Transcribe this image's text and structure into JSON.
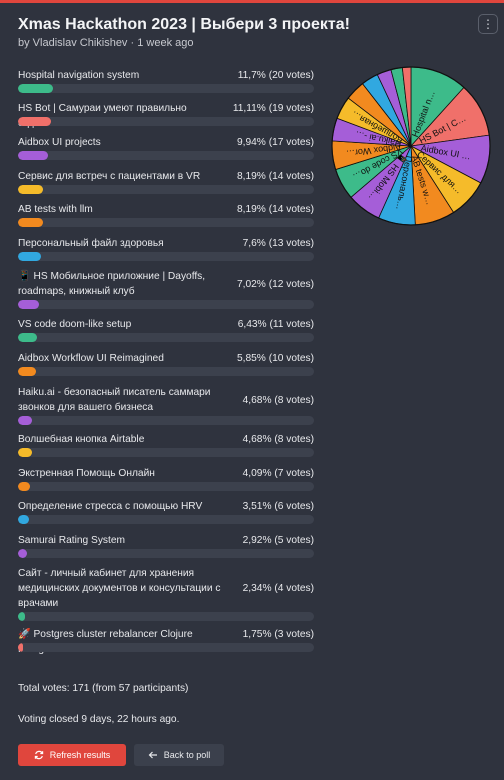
{
  "poll": {
    "title": "Xmas Hackathon 2023 | Выбери 3 проекта!",
    "byline": "by Vladislav Chikishev · 1 week ago",
    "more_icon": "more-dots-icon",
    "options": [
      {
        "label": "Hospital navigation system",
        "votes": "11,7% (20 votes)",
        "percent": 11.7,
        "color": "#3dbb8a"
      },
      {
        "label": "HS Bot | Самураи умеют правильно отдыхать!",
        "votes": "11,11% (19 votes)",
        "percent": 11.11,
        "color": "#f0706a"
      },
      {
        "label": "Aidbox UI projects",
        "votes": "9,94% (17 votes)",
        "percent": 9.94,
        "color": "#a55ed8"
      },
      {
        "label": "Сервис для встреч с пациентами в VR",
        "votes": "8,19% (14 votes)",
        "percent": 8.19,
        "color": "#f5bb2a"
      },
      {
        "label": "AB tests with llm",
        "votes": "8,19% (14 votes)",
        "percent": 8.19,
        "color": "#f28a1f"
      },
      {
        "label": "Персональный файл здоровья",
        "votes": "7,6% (13 votes)",
        "percent": 7.6,
        "color": "#31a8e0"
      },
      {
        "label": "📱 HS Мобильное приложние | Dayoffs, roadmaps, книжный клуб",
        "votes": "7,02% (12 votes)",
        "percent": 7.02,
        "color": "#a55ed8"
      },
      {
        "label": "VS code doom-like setup",
        "votes": "6,43% (11 votes)",
        "percent": 6.43,
        "color": "#3dbb8a"
      },
      {
        "label": "Aidbox Workflow UI Reimagined",
        "votes": "5,85% (10 votes)",
        "percent": 5.85,
        "color": "#f28a1f"
      },
      {
        "label": "Haiku.ai - безопасный писатель саммари звонков для вашего бизнеса",
        "votes": "4,68% (8 votes)",
        "percent": 4.68,
        "color": "#a55ed8"
      },
      {
        "label": "Волшебная кнопка Airtable",
        "votes": "4,68% (8 votes)",
        "percent": 4.68,
        "color": "#f5bb2a"
      },
      {
        "label": "Экстренная Помощь Онлайн",
        "votes": "4,09% (7 votes)",
        "percent": 4.09,
        "color": "#f28a1f"
      },
      {
        "label": "Определение стресса с помощью HRV",
        "votes": "3,51% (6 votes)",
        "percent": 3.51,
        "color": "#31a8e0"
      },
      {
        "label": "Samurai Rating System",
        "votes": "2,92% (5 votes)",
        "percent": 2.92,
        "color": "#a55ed8"
      },
      {
        "label": "Сайт - личный кабинет для хранения медицинских документов и консультации с врачами",
        "votes": "2,34% (4 votes)",
        "percent": 2.34,
        "color": "#3dbb8a"
      },
      {
        "label": "🚀 Postgres cluster rebalancer Clojure Postgres",
        "votes": "1,75% (3 votes)",
        "percent": 1.75,
        "color": "#f0706a"
      }
    ],
    "pie_labels": [
      "Hospital n…",
      "HS Bot | C…",
      "Aidbox UI …",
      "Сервис для…",
      "AB tests w…",
      "Персональ…",
      "📱 HS Mobi…",
      "VS code do…",
      "Aidbox Wor…",
      "Haiku.ai -…",
      "Волшебная…"
    ],
    "totals": "Total votes: 171 (from 57 participants)",
    "closed": "Voting closed 9 days, 22 hours ago.",
    "refresh_label": "Refresh results",
    "refresh_icon": "refresh-icon",
    "back_label": "Back to poll",
    "back_icon": "arrow-left-icon"
  }
}
